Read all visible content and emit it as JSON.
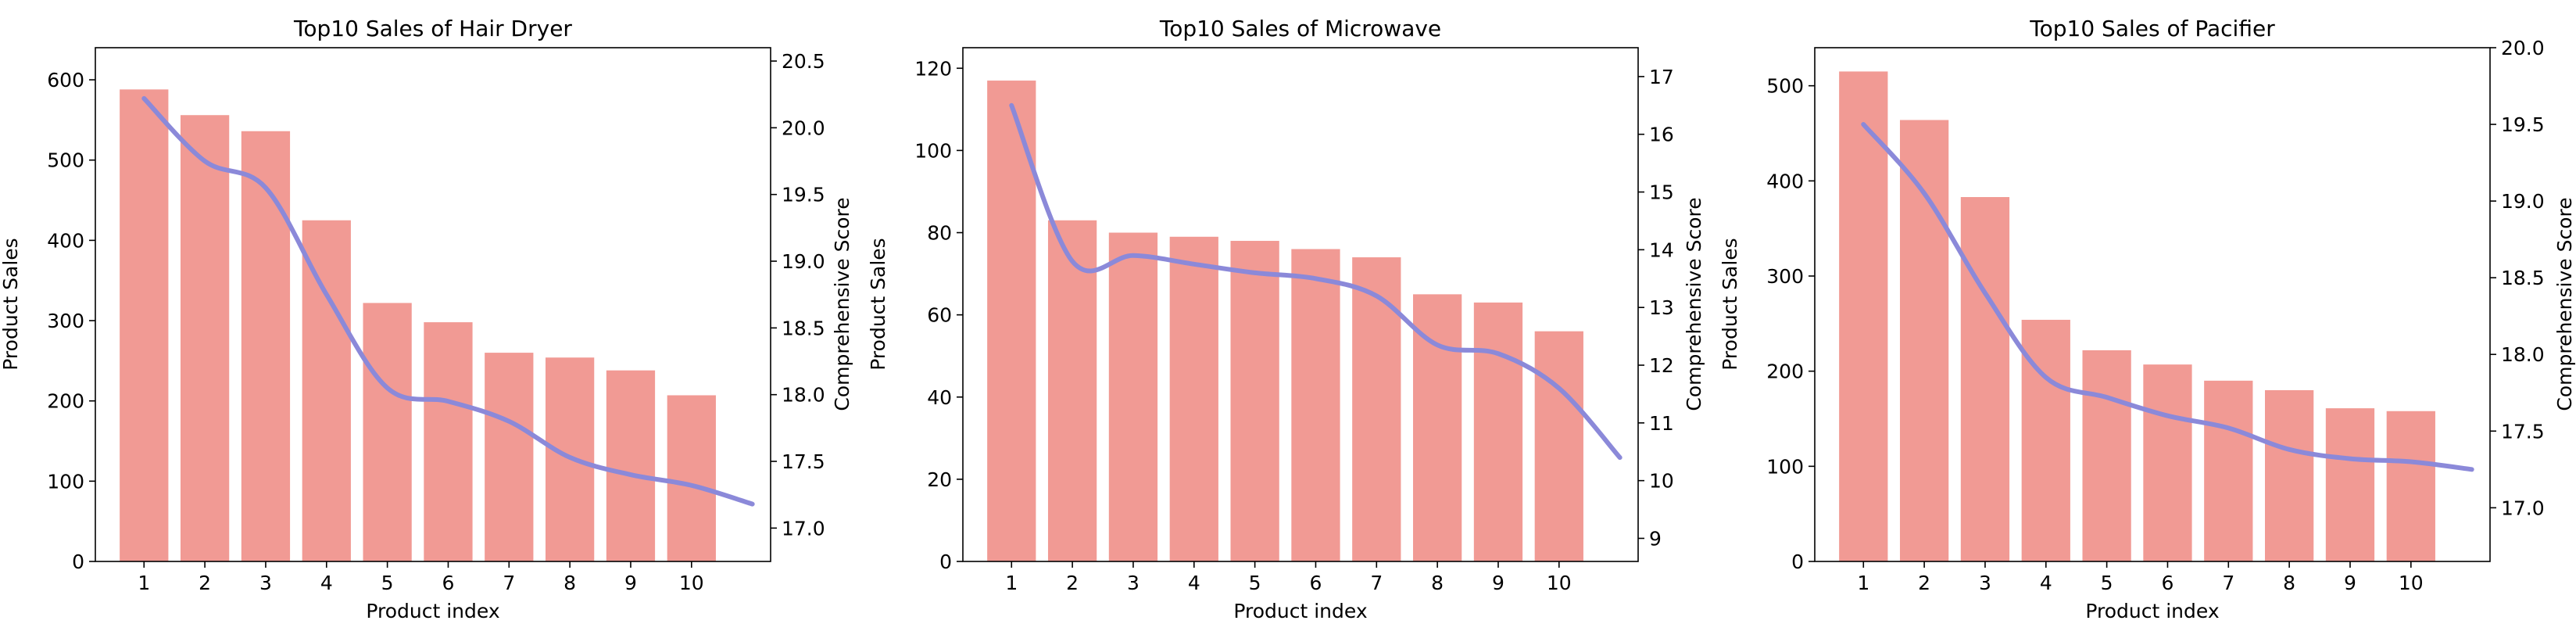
{
  "chart_data": [
    {
      "type": "bar",
      "title": "Top10 Sales of Hair Dryer",
      "xlabel": "Product index",
      "ylabel": "Product Sales",
      "y2label": "Comprehensive Score",
      "categories": [
        "1",
        "2",
        "3",
        "4",
        "5",
        "6",
        "7",
        "8",
        "9",
        "10"
      ],
      "values": [
        588,
        556,
        536,
        425,
        322,
        298,
        260,
        254,
        238,
        207
      ],
      "ylim": [
        0,
        640
      ],
      "yticks": [
        0,
        100,
        200,
        300,
        400,
        500,
        600
      ],
      "xlim": [
        0.2,
        11.3
      ],
      "y2lim": [
        16.75,
        20.6
      ],
      "y2ticks": [
        17.0,
        17.5,
        18.0,
        18.5,
        19.0,
        19.5,
        20.0,
        20.5
      ],
      "y2tick_decimals": 1,
      "score_curve": {
        "x": [
          1,
          2,
          3,
          4,
          5,
          6,
          7,
          8,
          9,
          10,
          11
        ],
        "y": [
          20.22,
          19.75,
          19.55,
          18.75,
          18.05,
          17.95,
          17.8,
          17.53,
          17.4,
          17.32,
          17.18
        ]
      },
      "bar_color": "#f19a94",
      "line_color": "#8b89d9",
      "grid": false
    },
    {
      "type": "bar",
      "title": "Top10 Sales of Microwave",
      "xlabel": "Product index",
      "ylabel": "Product Sales",
      "y2label": "Comprehensive Score",
      "categories": [
        "1",
        "2",
        "3",
        "4",
        "5",
        "6",
        "7",
        "8",
        "9",
        "10"
      ],
      "values": [
        117,
        83,
        80,
        79,
        78,
        76,
        74,
        65,
        63,
        56
      ],
      "ylim": [
        0,
        125
      ],
      "yticks": [
        0,
        20,
        40,
        60,
        80,
        100,
        120
      ],
      "xlim": [
        0.2,
        11.3
      ],
      "y2lim": [
        8.6,
        17.5
      ],
      "y2ticks": [
        9,
        10,
        11,
        12,
        13,
        14,
        15,
        16,
        17
      ],
      "y2tick_decimals": 0,
      "score_curve": {
        "x": [
          1,
          2,
          3,
          4,
          5,
          6,
          7,
          8,
          9,
          10,
          11
        ],
        "y": [
          16.5,
          13.8,
          13.9,
          13.75,
          13.6,
          13.5,
          13.2,
          12.35,
          12.2,
          11.6,
          10.4
        ]
      },
      "bar_color": "#f19a94",
      "line_color": "#8b89d9",
      "grid": false
    },
    {
      "type": "bar",
      "title": "Top10 Sales of Pacifier",
      "xlabel": "Product index",
      "ylabel": "Product Sales",
      "y2label": "Comprehensive Score",
      "categories": [
        "1",
        "2",
        "3",
        "4",
        "5",
        "6",
        "7",
        "8",
        "9",
        "10"
      ],
      "values": [
        515,
        464,
        383,
        254,
        222,
        207,
        190,
        180,
        161,
        158
      ],
      "ylim": [
        0,
        540
      ],
      "yticks": [
        0,
        100,
        200,
        300,
        400,
        500
      ],
      "xlim": [
        0.2,
        11.3
      ],
      "y2lim": [
        16.65,
        20.0
      ],
      "y2ticks": [
        17.0,
        17.5,
        18.0,
        18.5,
        19.0,
        19.5,
        20.0
      ],
      "y2tick_decimals": 1,
      "score_curve": {
        "x": [
          1,
          2,
          3,
          4,
          5,
          6,
          7,
          8,
          9,
          10,
          11
        ],
        "y": [
          19.5,
          19.05,
          18.4,
          17.85,
          17.72,
          17.6,
          17.52,
          17.38,
          17.32,
          17.3,
          17.25
        ]
      },
      "bar_color": "#f19a94",
      "line_color": "#8b89d9",
      "grid": false
    }
  ]
}
